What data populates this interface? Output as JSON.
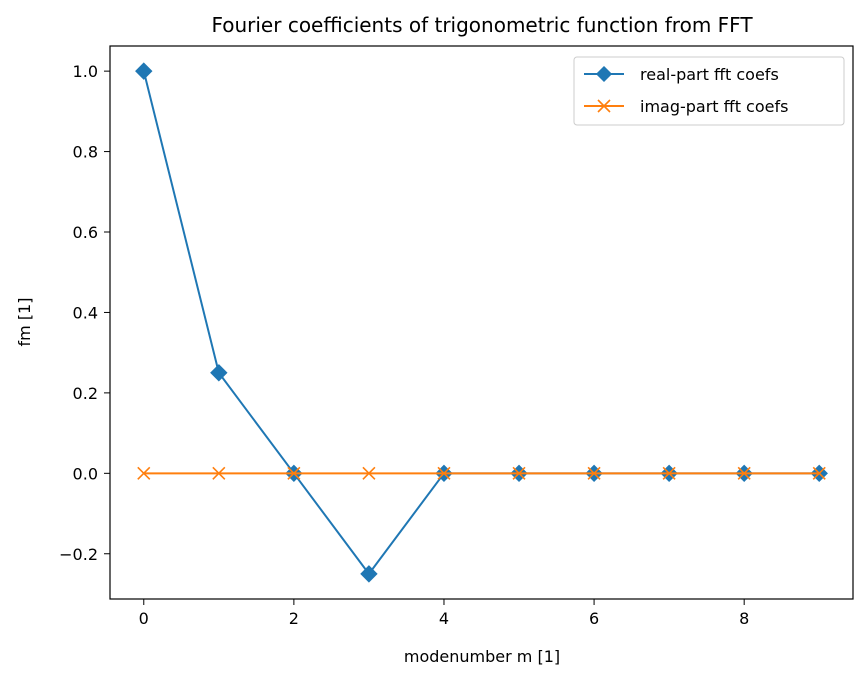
{
  "chart_data": {
    "type": "line",
    "title": "Fourier coefficients of trigonometric function from FFT",
    "xlabel": "modenumber m [1]",
    "ylabel": "fm [1]",
    "xlim": [
      -0.45,
      9.45
    ],
    "ylim": [
      -0.3125,
      1.0625
    ],
    "xticks": [
      0,
      2,
      4,
      6,
      8
    ],
    "yticks": [
      -0.2,
      0.0,
      0.2,
      0.4,
      0.6,
      0.8,
      1.0
    ],
    "xtick_labels": [
      "0",
      "2",
      "4",
      "6",
      "8"
    ],
    "ytick_labels": [
      "−0.2",
      "0.0",
      "0.2",
      "0.4",
      "0.6",
      "0.8",
      "1.0"
    ],
    "x": [
      0,
      1,
      2,
      3,
      4,
      5,
      6,
      7,
      8,
      9
    ],
    "series": [
      {
        "name": "real-part fft coefs",
        "values": [
          1.0,
          0.25,
          0.0,
          -0.25,
          0.0,
          0.0,
          0.0,
          0.0,
          0.0,
          0.0
        ],
        "color": "#1f77b4",
        "marker": "diamond"
      },
      {
        "name": "imag-part fft coefs",
        "values": [
          0.0,
          0.0,
          0.0,
          0.0,
          0.0,
          0.0,
          0.0,
          0.0,
          0.0,
          0.0
        ],
        "color": "#ff7f0e",
        "marker": "x"
      }
    ],
    "legend": "top-right",
    "grid": false
  }
}
